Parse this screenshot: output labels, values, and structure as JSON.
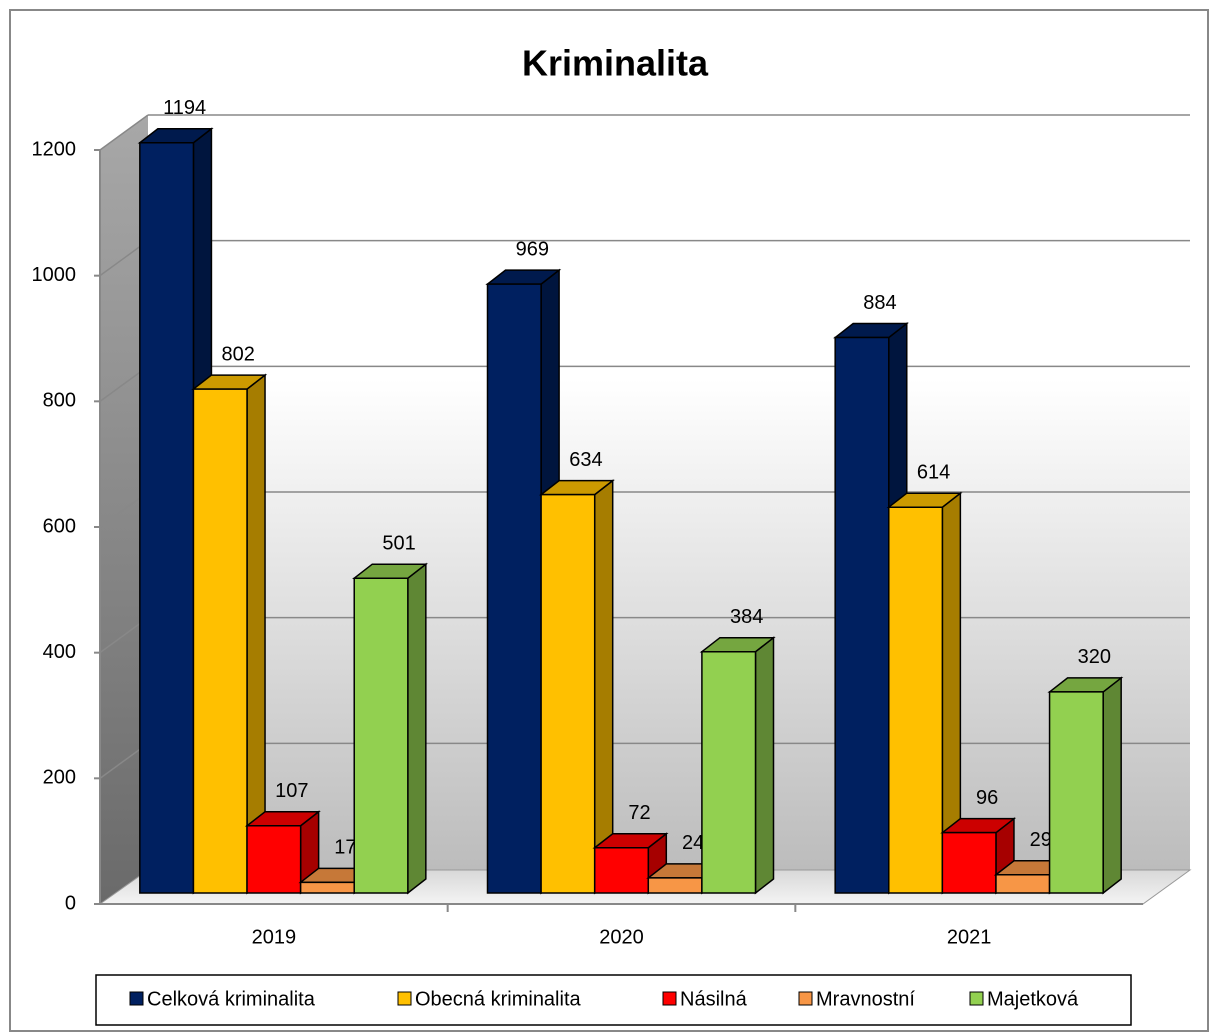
{
  "chart_data": {
    "type": "bar3d",
    "title": "Kriminalita",
    "categories": [
      "2019",
      "2020",
      "2021"
    ],
    "series": [
      {
        "name": "Celková kriminalita",
        "color": "#002060",
        "values": [
          1194,
          969,
          884
        ]
      },
      {
        "name": "Obecná kriminalita",
        "color": "#ffc000",
        "values": [
          802,
          634,
          614
        ]
      },
      {
        "name": "Násilná",
        "color": "#ff0000",
        "values": [
          107,
          72,
          96
        ]
      },
      {
        "name": "Mravnostní",
        "color": "#f79646",
        "values": [
          17,
          24,
          29
        ]
      },
      {
        "name": "Majetková",
        "color": "#92d050",
        "values": [
          501,
          384,
          320
        ]
      }
    ],
    "ylim": [
      0,
      1200
    ],
    "yticks": [
      0,
      200,
      400,
      600,
      800,
      1000,
      1200
    ],
    "grid": true,
    "legend": "bottom"
  }
}
